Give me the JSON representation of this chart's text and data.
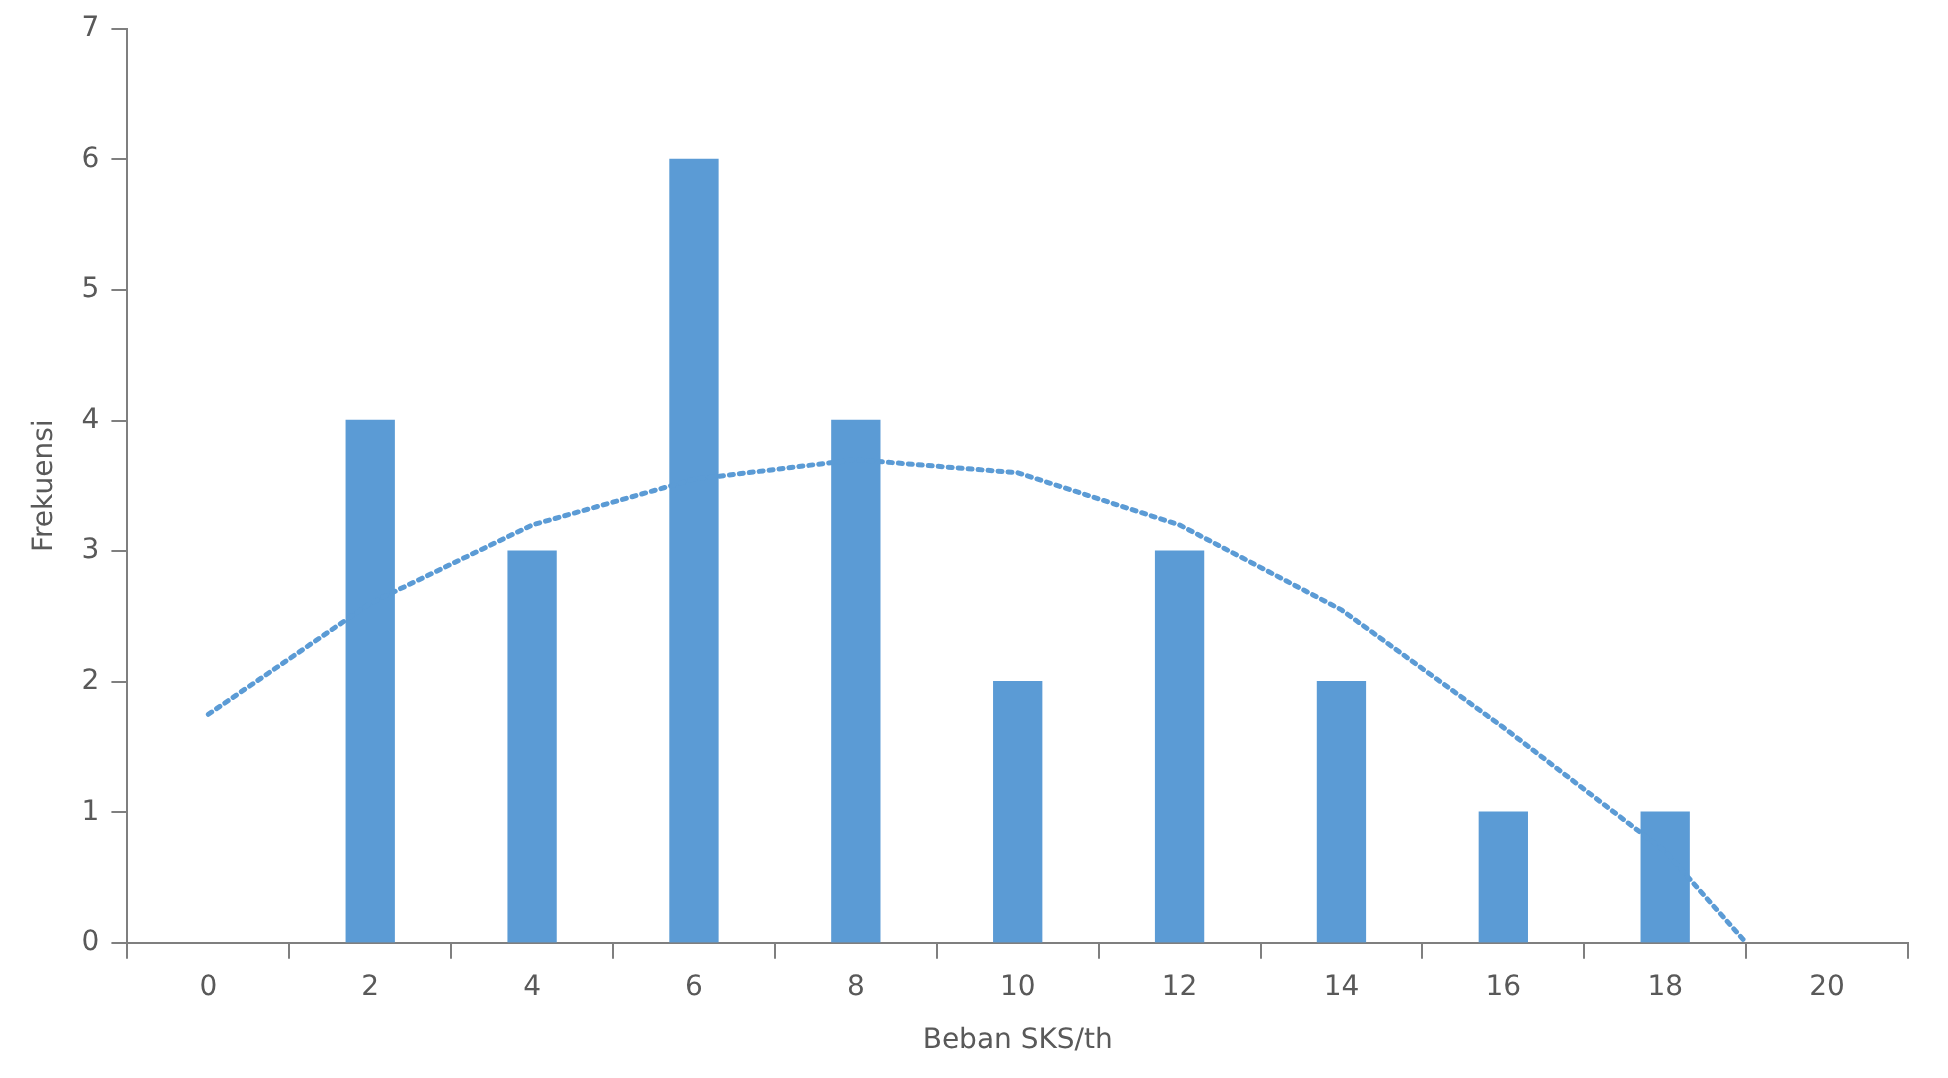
{
  "chart_data": {
    "type": "bar",
    "xlabel": "Beban SKS/th",
    "ylabel": "Frekuensi",
    "x": [
      2,
      4,
      6,
      8,
      10,
      12,
      14,
      16,
      18
    ],
    "xlim": [
      -1,
      21
    ],
    "xticks": [
      0,
      2,
      4,
      6,
      8,
      10,
      12,
      14,
      16,
      18,
      20
    ],
    "ylim": [
      0,
      7
    ],
    "yticks": [
      0,
      1,
      2,
      3,
      4,
      5,
      6,
      7
    ],
    "grid": false,
    "legend": false,
    "series": [
      {
        "color": "#5b9bd5",
        "values": [
          4,
          3,
          6,
          4,
          2,
          3,
          2,
          1,
          1
        ]
      },
      {
        "type": "line",
        "color": "#5b9bd5",
        "line_style": "dotted",
        "marker": "none",
        "x": [
          0,
          2,
          4,
          6,
          8,
          10,
          12,
          14,
          16,
          18,
          19
        ],
        "values": [
          1.75,
          2.6,
          3.2,
          3.55,
          3.7,
          3.6,
          3.2,
          2.55,
          1.65,
          0.7,
          0
        ]
      }
    ]
  }
}
